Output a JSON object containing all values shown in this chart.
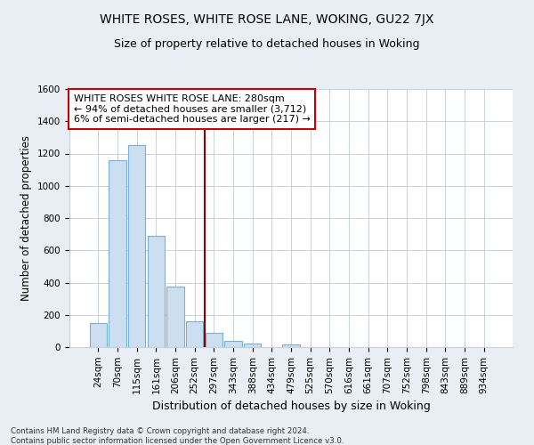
{
  "title": "WHITE ROSES, WHITE ROSE LANE, WOKING, GU22 7JX",
  "subtitle": "Size of property relative to detached houses in Woking",
  "xlabel": "Distribution of detached houses by size in Woking",
  "ylabel": "Number of detached properties",
  "bar_labels": [
    "24sqm",
    "70sqm",
    "115sqm",
    "161sqm",
    "206sqm",
    "252sqm",
    "297sqm",
    "343sqm",
    "388sqm",
    "434sqm",
    "479sqm",
    "525sqm",
    "570sqm",
    "616sqm",
    "661sqm",
    "707sqm",
    "752sqm",
    "798sqm",
    "843sqm",
    "889sqm",
    "934sqm"
  ],
  "bar_values": [
    150,
    1160,
    1255,
    690,
    375,
    160,
    90,
    40,
    20,
    0,
    15,
    0,
    0,
    0,
    0,
    0,
    0,
    0,
    0,
    0,
    0
  ],
  "bar_color": "#ccdff0",
  "bar_edge_color": "#7aafd4",
  "vline_color": "#8b0000",
  "vline_index": 5.5,
  "annotation_line1": "WHITE ROSES WHITE ROSE LANE: 280sqm",
  "annotation_line2": "← 94% of detached houses are smaller (3,712)",
  "annotation_line3": "6% of semi-detached houses are larger (217) →",
  "annotation_box_facecolor": "#ffffff",
  "annotation_box_edgecolor": "#cc0000",
  "ylim": [
    0,
    1600
  ],
  "yticks": [
    0,
    200,
    400,
    600,
    800,
    1000,
    1200,
    1400,
    1600
  ],
  "footer_line1": "Contains HM Land Registry data © Crown copyright and database right 2024.",
  "footer_line2": "Contains public sector information licensed under the Open Government Licence v3.0.",
  "bg_color": "#e8eef4",
  "plot_bg_color": "#ffffff",
  "grid_color": "#c8d0d8",
  "title_fontsize": 10,
  "subtitle_fontsize": 9,
  "tick_fontsize": 7.5,
  "ylabel_fontsize": 8.5,
  "xlabel_fontsize": 9,
  "annotation_fontsize": 8
}
